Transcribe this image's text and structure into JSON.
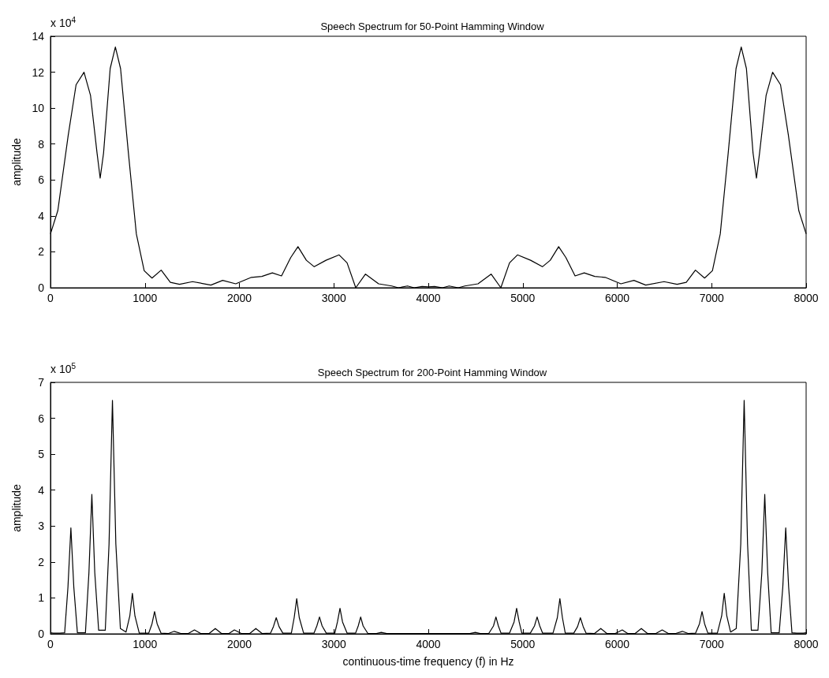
{
  "chart_data": [
    {
      "type": "line",
      "title": "Speech Spectrum for 50-Point Hamming Window",
      "ylabel": "amplitude",
      "annotations": [
        "x 10$^{4}$"
      ],
      "color": "#000000",
      "marker": "none",
      "grid": false,
      "xlim": [
        0,
        8000
      ],
      "xticks": [
        0,
        1000,
        2000,
        3000,
        4000,
        5000,
        6000,
        7000,
        8000
      ],
      "ylim": [
        0,
        14
      ],
      "yticks": [
        0,
        2,
        4,
        6,
        8,
        10,
        12,
        14
      ],
      "x": [
        0,
        78,
        188,
        271,
        355,
        424,
        493,
        526,
        562,
        632,
        687,
        742,
        825,
        909,
        992,
        1075,
        1172,
        1269,
        1366,
        1504,
        1698,
        1823,
        1961,
        2127,
        2238,
        2349,
        2446,
        2543,
        2620,
        2709,
        2792,
        2917,
        3056,
        3140,
        3232,
        3335,
        3474,
        3613,
        3683,
        3780,
        3850,
        3934,
        4000,
        4066,
        4150,
        4220,
        4317,
        4387,
        4526,
        4665,
        4768,
        4860,
        4944,
        5083,
        5208,
        5291,
        5380,
        5457,
        5554,
        5651,
        5762,
        5873,
        6039,
        6177,
        6302,
        6496,
        6634,
        6731,
        6828,
        6925,
        7008,
        7091,
        7175,
        7258,
        7313,
        7368,
        7438,
        7474,
        7507,
        7576,
        7645,
        7729,
        7812,
        7922,
        8000
      ],
      "values": [
        3.0,
        4.3,
        8.5,
        11.3,
        12.0,
        10.7,
        7.5,
        6.1,
        7.5,
        12.2,
        13.4,
        12.2,
        7.5,
        3.0,
        0.95,
        0.54,
        0.98,
        0.3,
        0.19,
        0.34,
        0.15,
        0.41,
        0.22,
        0.58,
        0.63,
        0.83,
        0.66,
        1.68,
        2.29,
        1.53,
        1.17,
        1.53,
        1.83,
        1.39,
        0,
        0.76,
        0.22,
        0.1,
        0,
        0.1,
        0,
        0.07,
        0.05,
        0.07,
        0,
        0.1,
        0,
        0.1,
        0.22,
        0.76,
        0,
        1.39,
        1.83,
        1.53,
        1.17,
        1.53,
        2.29,
        1.68,
        0.66,
        0.83,
        0.63,
        0.58,
        0.22,
        0.41,
        0.15,
        0.34,
        0.19,
        0.3,
        0.98,
        0.54,
        0.95,
        3.0,
        7.5,
        12.2,
        13.4,
        12.2,
        7.5,
        6.1,
        7.5,
        10.7,
        12.0,
        11.3,
        8.5,
        4.3,
        3.0
      ]
    },
    {
      "type": "line",
      "title": "Speech Spectrum for 200-Point Hamming Window",
      "xlabel": "continuous-time frequency (f) in Hz",
      "ylabel": "amplitude",
      "annotations": [
        "x 10$^{5}$"
      ],
      "color": "#000000",
      "marker": "none",
      "grid": false,
      "xlim": [
        0,
        8000
      ],
      "xticks": [
        0,
        1000,
        2000,
        3000,
        4000,
        5000,
        6000,
        7000,
        8000
      ],
      "ylim": [
        0,
        7
      ],
      "yticks": [
        0,
        1,
        2,
        3,
        4,
        5,
        6,
        7
      ],
      "x": [
        0,
        30,
        100,
        150,
        185,
        216,
        247,
        285,
        370,
        407,
        438,
        469,
        510,
        580,
        620,
        656,
        692,
        740,
        800,
        840,
        867,
        894,
        940,
        1040,
        1075,
        1102,
        1129,
        1170,
        1250,
        1310,
        1380,
        1460,
        1524,
        1590,
        1680,
        1745,
        1810,
        1890,
        1947,
        2020,
        2110,
        2174,
        2240,
        2330,
        2360,
        2390,
        2420,
        2460,
        2550,
        2580,
        2607,
        2634,
        2680,
        2790,
        2820,
        2848,
        2876,
        2920,
        3010,
        3038,
        3065,
        3092,
        3140,
        3230,
        3258,
        3284,
        3310,
        3360,
        3450,
        3502,
        3560,
        4000,
        4440,
        4498,
        4550,
        4640,
        4690,
        4716,
        4742,
        4770,
        4860,
        4908,
        4935,
        4962,
        4990,
        5080,
        5124,
        5152,
        5180,
        5210,
        5320,
        5366,
        5393,
        5420,
        5450,
        5540,
        5580,
        5610,
        5640,
        5670,
        5760,
        5826,
        5890,
        5980,
        6053,
        6110,
        6190,
        6255,
        6320,
        6410,
        6476,
        6540,
        6620,
        6690,
        6750,
        6830,
        6871,
        6898,
        6925,
        6960,
        7060,
        7106,
        7133,
        7160,
        7200,
        7260,
        7308,
        7344,
        7380,
        7420,
        7490,
        7531,
        7562,
        7593,
        7630,
        7715,
        7753,
        7784,
        7815,
        7850,
        7900,
        7970,
        8000
      ],
      "values": [
        0.03,
        0.02,
        0.02,
        0.03,
        1.3,
        2.95,
        1.3,
        0.03,
        0.03,
        1.7,
        3.88,
        1.7,
        0.1,
        0.1,
        2.5,
        6.5,
        2.5,
        0.15,
        0.05,
        0.5,
        1.13,
        0.5,
        0.02,
        0.02,
        0.28,
        0.62,
        0.28,
        0.02,
        0.01,
        0.07,
        0.01,
        0.01,
        0.11,
        0.01,
        0.01,
        0.15,
        0.01,
        0.01,
        0.11,
        0.01,
        0.01,
        0.15,
        0.01,
        0.02,
        0.2,
        0.45,
        0.2,
        0.02,
        0.02,
        0.45,
        0.98,
        0.45,
        0.02,
        0.02,
        0.22,
        0.47,
        0.22,
        0.02,
        0.02,
        0.33,
        0.71,
        0.33,
        0.02,
        0.02,
        0.22,
        0.47,
        0.22,
        0.01,
        0.01,
        0.04,
        0.01,
        0.01,
        0.01,
        0.04,
        0.01,
        0.01,
        0.22,
        0.47,
        0.22,
        0.02,
        0.02,
        0.33,
        0.71,
        0.33,
        0.02,
        0.02,
        0.22,
        0.47,
        0.22,
        0.02,
        0.02,
        0.45,
        0.98,
        0.45,
        0.02,
        0.02,
        0.2,
        0.45,
        0.2,
        0.02,
        0.01,
        0.15,
        0.01,
        0.01,
        0.11,
        0.01,
        0.01,
        0.15,
        0.01,
        0.01,
        0.11,
        0.01,
        0.01,
        0.07,
        0.01,
        0.02,
        0.28,
        0.62,
        0.28,
        0.02,
        0.02,
        0.5,
        1.13,
        0.5,
        0.05,
        0.15,
        2.5,
        6.5,
        2.5,
        0.1,
        0.1,
        1.7,
        3.88,
        1.7,
        0.03,
        0.03,
        1.3,
        2.95,
        1.3,
        0.03,
        0.02,
        0.02,
        0.03
      ]
    }
  ]
}
